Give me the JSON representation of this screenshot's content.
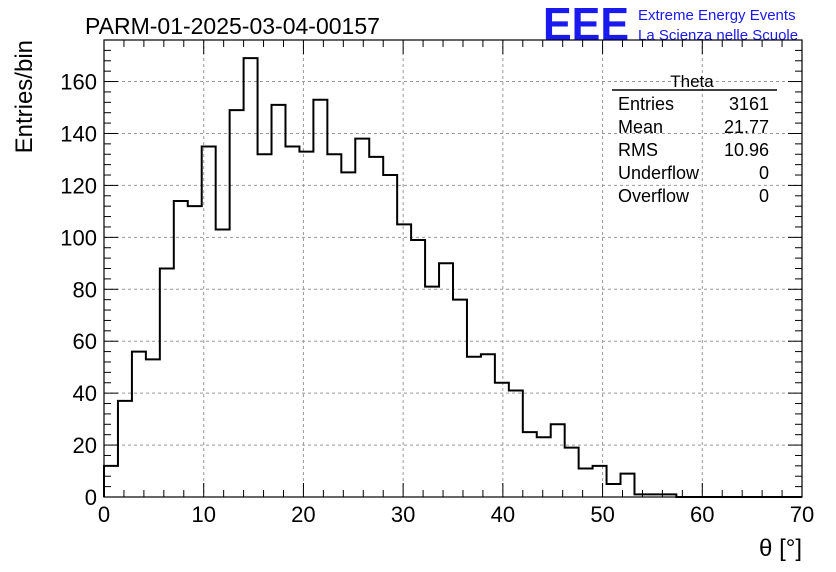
{
  "chart_data": {
    "type": "bar",
    "title": "PARM-01-2025-03-04-00157",
    "xlabel": "θ [°]",
    "ylabel": "Entries/bin",
    "xlim": [
      0,
      70
    ],
    "ylim": [
      0,
      176
    ],
    "bin_width": 1.4,
    "x_ticks": [
      0,
      10,
      20,
      30,
      40,
      50,
      60,
      70
    ],
    "y_ticks": [
      0,
      20,
      40,
      60,
      80,
      100,
      120,
      140,
      160
    ],
    "grid": true,
    "values": [
      12,
      37,
      56,
      53,
      88,
      114,
      112,
      135,
      103,
      149,
      169,
      132,
      151,
      135,
      133,
      153,
      132,
      125,
      138,
      131,
      124,
      105,
      99,
      81,
      90,
      76,
      54,
      55,
      44,
      41,
      25,
      23,
      28,
      19,
      11,
      12,
      5,
      9,
      1,
      1,
      1,
      0,
      0,
      0,
      0,
      0,
      0,
      0,
      0,
      0
    ],
    "stats": {
      "title": "Theta",
      "rows": [
        {
          "label": "Entries",
          "value": "3161"
        },
        {
          "label": "Mean",
          "value": "21.77"
        },
        {
          "label": "RMS",
          "value": "10.96"
        },
        {
          "label": "Underflow",
          "value": "0"
        },
        {
          "label": "Overflow",
          "value": "0"
        }
      ]
    },
    "logo": {
      "mark": "EEE",
      "line1": "Extreme Energy Events",
      "line2": "La Scienza nelle Scuole",
      "color": "#1a1aee"
    }
  }
}
